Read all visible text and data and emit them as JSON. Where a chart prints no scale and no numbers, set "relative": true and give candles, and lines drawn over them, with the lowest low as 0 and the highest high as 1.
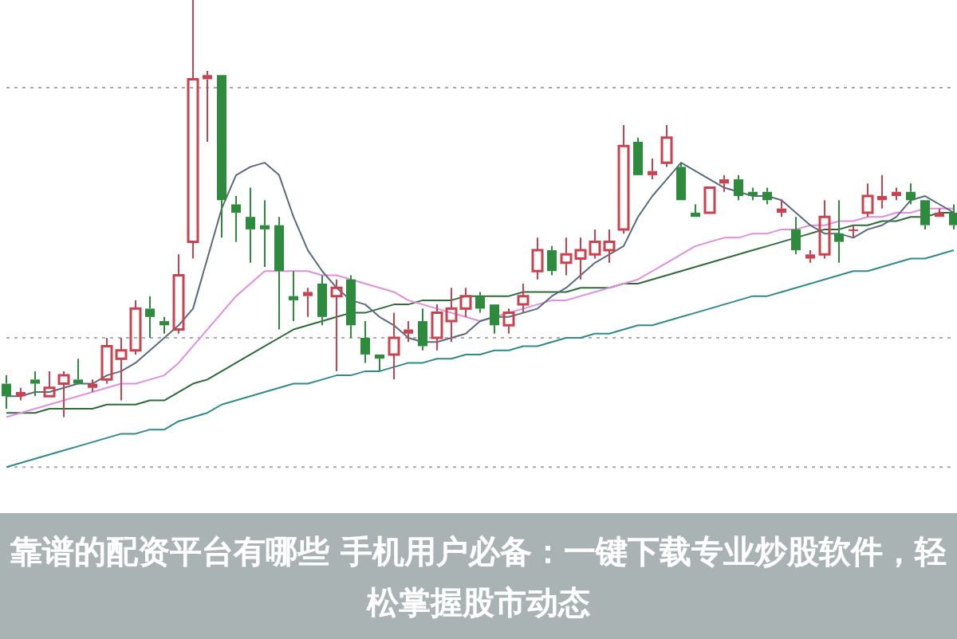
{
  "chart_data": {
    "type": "candlestick",
    "title": "靠谱的配资平台有哪些 手机用户必备：一键下载专业炒股软件，轻松掌握股市动态",
    "relative": true,
    "categories": [
      null,
      null,
      null,
      null,
      null,
      null,
      null,
      null,
      null,
      null,
      null,
      null,
      null,
      null,
      null,
      null,
      null,
      null,
      null,
      null,
      null,
      null,
      null,
      null,
      null,
      null,
      null,
      null,
      null,
      null,
      null,
      null,
      null,
      null,
      null,
      null,
      null,
      null,
      null,
      null,
      null,
      null,
      null,
      null,
      null,
      null,
      null,
      null,
      null,
      null,
      null,
      null,
      null,
      null,
      null,
      null,
      null,
      null,
      null,
      null,
      null,
      null,
      null,
      null,
      null,
      null,
      null
    ],
    "ohlc": [
      [
        0.08,
        0.1,
        0.02,
        0.05
      ],
      [
        0.05,
        0.07,
        0.04,
        0.06
      ],
      [
        0.09,
        0.11,
        0.05,
        0.08
      ],
      [
        0.05,
        0.11,
        0.05,
        0.07
      ],
      [
        0.08,
        0.11,
        0.0,
        0.1
      ],
      [
        0.09,
        0.14,
        0.08,
        0.08
      ],
      [
        0.07,
        0.09,
        0.06,
        0.08
      ],
      [
        0.09,
        0.19,
        0.08,
        0.17
      ],
      [
        0.14,
        0.19,
        0.04,
        0.16
      ],
      [
        0.16,
        0.28,
        0.15,
        0.26
      ],
      [
        0.26,
        0.29,
        0.19,
        0.24
      ],
      [
        0.23,
        0.24,
        0.2,
        0.22
      ],
      [
        0.21,
        0.39,
        0.2,
        0.34
      ],
      [
        0.42,
        1.0,
        0.38,
        0.81
      ],
      [
        0.81,
        0.83,
        0.66,
        0.82
      ],
      [
        0.82,
        0.82,
        0.43,
        0.52
      ],
      [
        0.51,
        0.53,
        0.42,
        0.49
      ],
      [
        0.48,
        0.55,
        0.37,
        0.45
      ],
      [
        0.46,
        0.52,
        0.36,
        0.45
      ],
      [
        0.46,
        0.48,
        0.21,
        0.35
      ],
      [
        0.29,
        0.35,
        0.23,
        0.28
      ],
      [
        0.29,
        0.31,
        0.24,
        0.3
      ],
      [
        0.32,
        0.34,
        0.22,
        0.24
      ],
      [
        0.29,
        0.33,
        0.11,
        0.31
      ],
      [
        0.33,
        0.34,
        0.19,
        0.22
      ],
      [
        0.19,
        0.23,
        0.13,
        0.15
      ],
      [
        0.15,
        0.15,
        0.11,
        0.14
      ],
      [
        0.15,
        0.25,
        0.09,
        0.19
      ],
      [
        0.2,
        0.23,
        0.18,
        0.21
      ],
      [
        0.23,
        0.26,
        0.16,
        0.17
      ],
      [
        0.19,
        0.27,
        0.16,
        0.25
      ],
      [
        0.23,
        0.31,
        0.18,
        0.26
      ],
      [
        0.26,
        0.31,
        0.24,
        0.29
      ],
      [
        0.29,
        0.3,
        0.25,
        0.26
      ],
      [
        0.27,
        0.27,
        0.2,
        0.22
      ],
      [
        0.22,
        0.26,
        0.2,
        0.25
      ],
      [
        0.27,
        0.32,
        0.25,
        0.29
      ],
      [
        0.35,
        0.43,
        0.33,
        0.4
      ],
      [
        0.4,
        0.41,
        0.34,
        0.35
      ],
      [
        0.37,
        0.43,
        0.34,
        0.39
      ],
      [
        0.38,
        0.43,
        0.33,
        0.4
      ],
      [
        0.39,
        0.45,
        0.38,
        0.42
      ],
      [
        0.4,
        0.45,
        0.37,
        0.42
      ],
      [
        0.45,
        0.7,
        0.44,
        0.65
      ],
      [
        0.66,
        0.67,
        0.58,
        0.58
      ],
      [
        0.58,
        0.62,
        0.57,
        0.59
      ],
      [
        0.61,
        0.7,
        0.6,
        0.67
      ],
      [
        0.6,
        0.61,
        0.52,
        0.52
      ],
      [
        0.49,
        0.51,
        0.48,
        0.48
      ],
      [
        0.49,
        0.55,
        0.49,
        0.55
      ],
      [
        0.56,
        0.58,
        0.54,
        0.57
      ],
      [
        0.57,
        0.58,
        0.52,
        0.53
      ],
      [
        0.54,
        0.55,
        0.52,
        0.53
      ],
      [
        0.54,
        0.55,
        0.51,
        0.52
      ],
      [
        0.49,
        0.52,
        0.48,
        0.5
      ],
      [
        0.45,
        0.48,
        0.39,
        0.4
      ],
      [
        0.38,
        0.4,
        0.37,
        0.39
      ],
      [
        0.39,
        0.52,
        0.38,
        0.48
      ],
      [
        0.44,
        0.52,
        0.37,
        0.42
      ],
      [
        0.45,
        0.46,
        0.43,
        0.45
      ],
      [
        0.49,
        0.56,
        0.48,
        0.53
      ],
      [
        0.52,
        0.58,
        0.5,
        0.53
      ],
      [
        0.53,
        0.55,
        0.52,
        0.54
      ],
      [
        0.54,
        0.56,
        0.51,
        0.52
      ],
      [
        0.52,
        0.52,
        0.45,
        0.46
      ],
      [
        0.48,
        0.5,
        0.48,
        0.49
      ],
      [
        0.49,
        0.51,
        0.45,
        0.46
      ]
    ],
    "colors": [
      "#2e8b3e",
      "#c8424f",
      "#2e8b3e",
      "#c8424f",
      "#c8424f",
      "#2e8b3e",
      "#c8424f",
      "#c8424f",
      "#c8424f",
      "#c8424f",
      "#2e8b3e",
      "#2e8b3e",
      "#c8424f",
      "#c8424f",
      "#c8424f",
      "#2e8b3e",
      "#2e8b3e",
      "#2e8b3e",
      "#2e8b3e",
      "#2e8b3e",
      "#2e8b3e",
      "#c8424f",
      "#2e8b3e",
      "#c8424f",
      "#2e8b3e",
      "#2e8b3e",
      "#2e8b3e",
      "#c8424f",
      "#c8424f",
      "#2e8b3e",
      "#c8424f",
      "#c8424f",
      "#c8424f",
      "#2e8b3e",
      "#2e8b3e",
      "#c8424f",
      "#c8424f",
      "#c8424f",
      "#2e8b3e",
      "#c8424f",
      "#c8424f",
      "#c8424f",
      "#c8424f",
      "#c8424f",
      "#2e8b3e",
      "#c8424f",
      "#c8424f",
      "#2e8b3e",
      "#2e8b3e",
      "#c8424f",
      "#c8424f",
      "#2e8b3e",
      "#2e8b3e",
      "#2e8b3e",
      "#c8424f",
      "#2e8b3e",
      "#c8424f",
      "#c8424f",
      "#2e8b3e",
      "#c8424f",
      "#c8424f",
      "#c8424f",
      "#c8424f",
      "#2e8b3e",
      "#2e8b3e",
      "#c8424f",
      "#2e8b3e"
    ],
    "series": [
      {
        "type": "line",
        "color": "#5a6b7d",
        "values": [
          0.05,
          0.05,
          0.06,
          0.06,
          0.07,
          0.08,
          0.08,
          0.1,
          0.11,
          0.13,
          0.16,
          0.19,
          0.22,
          0.26,
          0.38,
          0.5,
          0.58,
          0.6,
          0.61,
          0.58,
          0.48,
          0.4,
          0.35,
          0.31,
          0.28,
          0.27,
          0.24,
          0.22,
          0.19,
          0.18,
          0.18,
          0.19,
          0.2,
          0.23,
          0.24,
          0.24,
          0.25,
          0.26,
          0.29,
          0.31,
          0.34,
          0.37,
          0.39,
          0.41,
          0.48,
          0.53,
          0.57,
          0.61,
          0.59,
          0.57,
          0.55,
          0.54,
          0.53,
          0.53,
          0.52,
          0.49,
          0.46,
          0.44,
          0.44,
          0.43,
          0.45,
          0.46,
          0.48,
          0.52,
          0.53,
          0.51,
          0.49
        ]
      },
      {
        "type": "line",
        "color": "#e08ee0",
        "values": [
          0.0,
          0.01,
          0.02,
          0.03,
          0.04,
          0.05,
          0.06,
          0.07,
          0.08,
          0.08,
          0.09,
          0.1,
          0.13,
          0.17,
          0.21,
          0.25,
          0.29,
          0.32,
          0.35,
          0.35,
          0.35,
          0.35,
          0.34,
          0.34,
          0.33,
          0.32,
          0.31,
          0.3,
          0.28,
          0.27,
          0.26,
          0.25,
          0.24,
          0.23,
          0.24,
          0.25,
          0.26,
          0.27,
          0.28,
          0.28,
          0.29,
          0.3,
          0.31,
          0.32,
          0.33,
          0.35,
          0.37,
          0.39,
          0.41,
          0.42,
          0.43,
          0.43,
          0.44,
          0.44,
          0.45,
          0.45,
          0.46,
          0.46,
          0.47,
          0.47,
          0.48,
          0.48,
          0.49,
          0.49,
          0.5,
          0.5,
          0.5
        ]
      },
      {
        "type": "line",
        "color": "#2f6b3a",
        "values": [
          0.01,
          0.01,
          0.01,
          0.02,
          0.02,
          0.02,
          0.02,
          0.03,
          0.03,
          0.03,
          0.04,
          0.04,
          0.06,
          0.08,
          0.09,
          0.11,
          0.13,
          0.15,
          0.17,
          0.19,
          0.21,
          0.22,
          0.23,
          0.24,
          0.25,
          0.25,
          0.26,
          0.27,
          0.27,
          0.28,
          0.28,
          0.28,
          0.29,
          0.29,
          0.29,
          0.29,
          0.3,
          0.3,
          0.3,
          0.3,
          0.31,
          0.31,
          0.31,
          0.32,
          0.32,
          0.33,
          0.34,
          0.35,
          0.36,
          0.37,
          0.38,
          0.39,
          0.4,
          0.41,
          0.42,
          0.43,
          0.44,
          0.45,
          0.45,
          0.46,
          0.46,
          0.47,
          0.47,
          0.48,
          0.48,
          0.49,
          0.49
        ]
      },
      {
        "type": "line",
        "color": "#2f8a8a",
        "values": [
          -0.12,
          -0.11,
          -0.1,
          -0.09,
          -0.08,
          -0.07,
          -0.06,
          -0.05,
          -0.04,
          -0.04,
          -0.03,
          -0.03,
          -0.01,
          0.0,
          0.01,
          0.03,
          0.04,
          0.05,
          0.06,
          0.07,
          0.08,
          0.08,
          0.09,
          0.1,
          0.1,
          0.11,
          0.11,
          0.12,
          0.13,
          0.13,
          0.14,
          0.14,
          0.15,
          0.15,
          0.16,
          0.16,
          0.17,
          0.17,
          0.18,
          0.19,
          0.19,
          0.2,
          0.2,
          0.21,
          0.22,
          0.22,
          0.23,
          0.24,
          0.25,
          0.26,
          0.27,
          0.28,
          0.29,
          0.29,
          0.3,
          0.31,
          0.32,
          0.33,
          0.34,
          0.35,
          0.35,
          0.36,
          0.37,
          0.38,
          0.38,
          0.39,
          0.4
        ]
      }
    ],
    "ref_lines": [
      {
        "axis": "y",
        "value": 0.79,
        "color": "#aaaaaa",
        "line_style": "dotted"
      },
      {
        "axis": "y",
        "value": 0.19,
        "color": "#aaaaaa",
        "line_style": "dotted"
      },
      {
        "axis": "y",
        "value": -0.12,
        "color": "#aaaaaa",
        "line_style": "dotted"
      }
    ]
  }
}
